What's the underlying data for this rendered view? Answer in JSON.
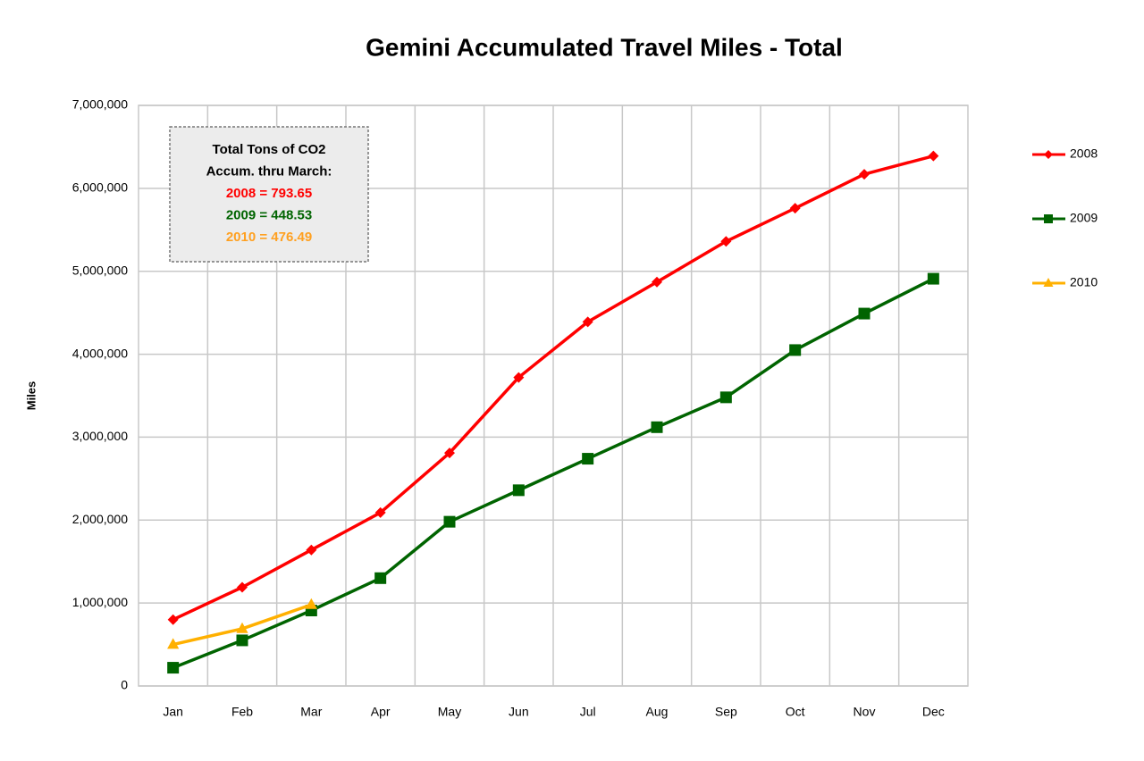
{
  "chart_data": {
    "type": "line",
    "title": "Gemini Accumulated Travel Miles - Total",
    "y_label": "Miles",
    "categories": [
      "Jan",
      "Feb",
      "Mar",
      "Apr",
      "May",
      "Jun",
      "Jul",
      "Aug",
      "Sep",
      "Oct",
      "Nov",
      "Dec"
    ],
    "series": [
      {
        "name": "2008",
        "color": "#ff0000",
        "marker": "diamond",
        "values": [
          800000,
          1190000,
          1640000,
          2090000,
          2810000,
          3720000,
          4390000,
          4870000,
          5360000,
          5760000,
          6170000,
          6390000
        ]
      },
      {
        "name": "2009",
        "color": "#006400",
        "marker": "square",
        "values": [
          220000,
          550000,
          910000,
          1300000,
          1980000,
          2360000,
          2740000,
          3120000,
          3480000,
          4050000,
          4490000,
          4910000
        ]
      },
      {
        "name": "2010",
        "color": "#ffb000",
        "marker": "triangle",
        "values": [
          500000,
          690000,
          980000,
          null,
          null,
          null,
          null,
          null,
          null,
          null,
          null,
          null
        ]
      }
    ],
    "ylim": [
      0,
      7000000
    ],
    "yticks": [
      0,
      {
        "value": 1000000,
        "label": "1,000,000"
      },
      {
        "value": 2000000,
        "label": "2,000,000"
      },
      {
        "value": 3000000,
        "label": "3,000,000"
      },
      {
        "value": 4000000,
        "label": "4,000,000"
      },
      {
        "value": 5000000,
        "label": "5,000,000"
      },
      {
        "value": 6000000,
        "label": "6,000,000"
      },
      {
        "value": 7000000,
        "label": "7,000,000"
      }
    ],
    "grid": true,
    "legend": "right",
    "annotation": {
      "lines": [
        {
          "text": "Total Tons of CO2",
          "color": "#000000"
        },
        {
          "text": "Accum. thru March:",
          "color": "#000000"
        },
        {
          "text": "2008 = 793.65",
          "color": "#ff0000"
        },
        {
          "text": "2009 = 448.53",
          "color": "#006400"
        },
        {
          "text": "2010 = 476.49",
          "color": "#ffa020"
        }
      ]
    }
  }
}
